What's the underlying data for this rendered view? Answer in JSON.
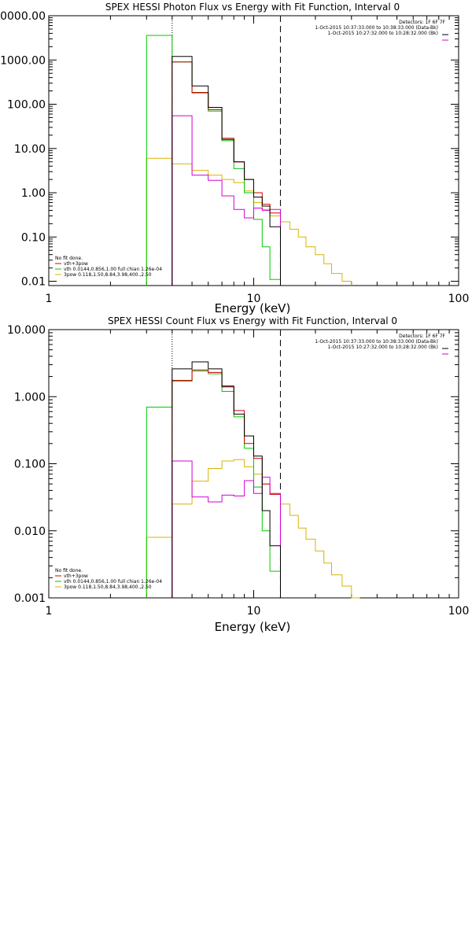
{
  "chart_data": [
    {
      "type": "line",
      "title": "SPEX HESSI Photon Flux vs Energy with Fit Function, Interval 0",
      "xlabel": "Energy (keV)",
      "ylabel": "",
      "xscale": "log",
      "yscale": "log",
      "xlim": [
        1,
        100
      ],
      "ylim": [
        0.008,
        10000
      ],
      "x_ticks": [
        1,
        10,
        100
      ],
      "x_tick_labels": [
        "1",
        "10",
        "100"
      ],
      "y_ticks": [
        0.01,
        0.1,
        1,
        10,
        100,
        1000,
        10000
      ],
      "y_tick_labels": [
        "0.01",
        "0.10",
        "1.00",
        "10.00",
        "100.00",
        "1000.00",
        "10000.00"
      ],
      "vlines": [
        {
          "x": 4.0,
          "style": "dotted"
        },
        {
          "x": 13.5,
          "style": "dashed"
        }
      ],
      "info": [
        "Detectors: 1F 6F 7F",
        "1-Oct-2015 10:37:33.000 to 10:38:33.000 (Data-Bk)",
        "1-Oct-2015 10:27:32.000 to 10:28:32.000 (Bk)"
      ],
      "legend_lines": [
        "No fit done.",
        "vth+3pow",
        "vth 0.0144,0.856,1.00  full chian 1.26e-04",
        "3pow 0.118,1.50,8.84,3.98,400.,2.50"
      ],
      "legend_colors": [
        "#ffffff",
        "#d40000",
        "#00c800",
        "#d8b400"
      ],
      "series": [
        {
          "name": "1-Oct-2015 10:37:33.000 to 10:38:33.000 (Data-Bk)",
          "color": "#000000",
          "edges": [
            4,
            5,
            6,
            7,
            8,
            9,
            10,
            11,
            12,
            13.5
          ],
          "values": [
            1200,
            260,
            85,
            16,
            5,
            2,
            0.8,
            0.5,
            0.17
          ]
        },
        {
          "name": "1-Oct-2015 10:27:32.000 to 10:28:32.000 (Bk)",
          "color": "#d400d4",
          "edges": [
            4,
            5,
            6,
            7,
            8,
            9,
            10,
            11,
            12,
            13.5
          ],
          "values": [
            55,
            2.5,
            1.9,
            0.85,
            0.42,
            0.27,
            0.45,
            0.4,
            0.42
          ]
        },
        {
          "name": "vth+3pow",
          "color": "#d40000",
          "edges": [
            4,
            5,
            6,
            7,
            8,
            9,
            10,
            11,
            12,
            13.5
          ],
          "values": [
            900,
            185,
            75,
            17,
            5,
            2,
            1,
            0.55,
            0.35
          ]
        },
        {
          "name": "vth",
          "color": "#00c800",
          "edges": [
            3,
            4,
            5,
            6,
            7,
            8,
            9,
            10,
            11,
            12,
            13.5
          ],
          "values": [
            3600,
            900,
            180,
            70,
            15,
            3.5,
            1,
            0.25,
            0.06,
            0.011
          ]
        },
        {
          "name": "3pow",
          "color": "#d8b400",
          "edges": [
            3,
            4,
            5,
            6,
            7,
            8,
            9,
            10,
            11,
            12,
            13.5,
            15,
            16.5,
            18,
            20,
            22,
            24,
            27,
            30
          ],
          "values": [
            6,
            4.5,
            3.2,
            2.5,
            2,
            1.7,
            1.1,
            0.6,
            0.42,
            0.3,
            0.22,
            0.15,
            0.1,
            0.06,
            0.04,
            0.025,
            0.015,
            0.01
          ]
        }
      ]
    },
    {
      "type": "line",
      "title": "SPEX HESSI Count Flux vs Energy with Fit Function, Interval 0",
      "xlabel": "Energy (keV)",
      "ylabel": "",
      "xscale": "log",
      "yscale": "log",
      "xlim": [
        1,
        100
      ],
      "ylim": [
        0.001,
        10
      ],
      "x_ticks": [
        1,
        10,
        100
      ],
      "x_tick_labels": [
        "1",
        "10",
        "100"
      ],
      "y_ticks": [
        0.001,
        0.01,
        0.1,
        1,
        10
      ],
      "y_tick_labels": [
        "0.001",
        "0.010",
        "0.100",
        "1.000",
        "10.000"
      ],
      "vlines": [
        {
          "x": 4.0,
          "style": "dotted"
        },
        {
          "x": 13.5,
          "style": "dashed"
        }
      ],
      "info": [
        "Detectors: 1F 6F 7F",
        "1-Oct-2015 10:37:33.000 to 10:38:33.000 (Data-Bk)",
        "1-Oct-2015 10:27:32.000 to 10:28:32.000 (Bk)"
      ],
      "legend_lines": [
        "No fit done.",
        "vth+3pow",
        "vth 0.0144,0.856,1.00  full chian 1.26e-04",
        "3pow 0.118,1.50,8.84,3.98,400.,2.50"
      ],
      "legend_colors": [
        "#ffffff",
        "#d40000",
        "#00c800",
        "#d8b400"
      ],
      "series": [
        {
          "name": "1-Oct-2015 10:37:33.000 to 10:38:33.000 (Data-Bk)",
          "color": "#000000",
          "edges": [
            4,
            5,
            6,
            7,
            8,
            9,
            10,
            11,
            12,
            13.5
          ],
          "values": [
            2.6,
            3.3,
            2.6,
            1.4,
            0.55,
            0.26,
            0.13,
            0.02,
            0.006
          ]
        },
        {
          "name": "1-Oct-2015 10:27:32.000 to 10:28:32.000 (Bk)",
          "color": "#d400d4",
          "edges": [
            4,
            5,
            6,
            7,
            8,
            9,
            10,
            11,
            12,
            13.5
          ],
          "values": [
            0.11,
            0.032,
            0.027,
            0.034,
            0.033,
            0.056,
            0.036,
            0.063,
            0.036
          ]
        },
        {
          "name": "vth+3pow",
          "color": "#d40000",
          "edges": [
            4,
            5,
            6,
            7,
            8,
            9,
            10,
            11,
            12,
            13.5
          ],
          "values": [
            1.75,
            2.5,
            2.3,
            1.45,
            0.62,
            0.2,
            0.12,
            0.05,
            0.035
          ]
        },
        {
          "name": "vth",
          "color": "#00c800",
          "edges": [
            3,
            4,
            5,
            6,
            7,
            8,
            9,
            10,
            11,
            12,
            13.5
          ],
          "values": [
            0.7,
            1.7,
            2.4,
            2.2,
            1.2,
            0.5,
            0.17,
            0.045,
            0.01,
            0.0025
          ]
        },
        {
          "name": "3pow",
          "color": "#d8b400",
          "edges": [
            3,
            4,
            5,
            6,
            7,
            8,
            9,
            10,
            11,
            12,
            13.5,
            15,
            16.5,
            18,
            20,
            22,
            24,
            27,
            30,
            33
          ],
          "values": [
            0.008,
            0.025,
            0.055,
            0.085,
            0.11,
            0.115,
            0.09,
            0.07,
            0.05,
            0.035,
            0.025,
            0.017,
            0.011,
            0.0075,
            0.005,
            0.0033,
            0.0022,
            0.0015,
            0.001
          ]
        }
      ]
    }
  ]
}
